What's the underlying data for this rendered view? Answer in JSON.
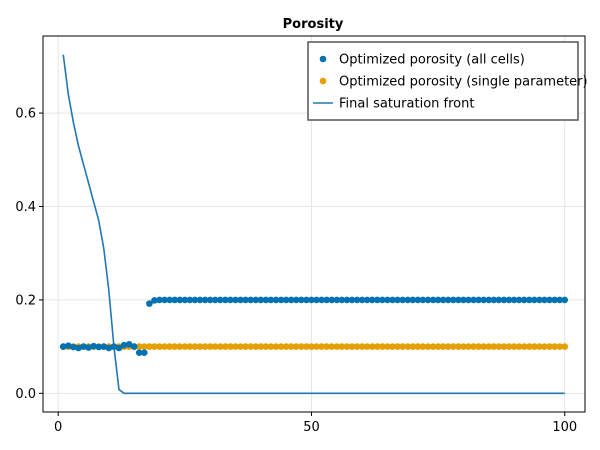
{
  "chart_data": {
    "type": "scatter",
    "title": "Porosity",
    "xlabel": "",
    "ylabel": "",
    "xlim": [
      -3,
      104
    ],
    "ylim": [
      -0.04,
      0.765
    ],
    "xticks": [
      0,
      50,
      100
    ],
    "yticks": [
      0.0,
      0.2,
      0.4,
      0.6
    ],
    "grid": true,
    "legend_position": "top-right",
    "series": [
      {
        "name": "Optimized porosity (all cells)",
        "kind": "scatter",
        "color": "#0072b2",
        "x": [
          1,
          2,
          3,
          4,
          5,
          6,
          7,
          8,
          9,
          10,
          11,
          12,
          13,
          14,
          15,
          16,
          17,
          18,
          19,
          20,
          21,
          22,
          23,
          24,
          25,
          26,
          27,
          28,
          29,
          30,
          31,
          32,
          33,
          34,
          35,
          36,
          37,
          38,
          39,
          40,
          41,
          42,
          43,
          44,
          45,
          46,
          47,
          48,
          49,
          50,
          51,
          52,
          53,
          54,
          55,
          56,
          57,
          58,
          59,
          60,
          61,
          62,
          63,
          64,
          65,
          66,
          67,
          68,
          69,
          70,
          71,
          72,
          73,
          74,
          75,
          76,
          77,
          78,
          79,
          80,
          81,
          82,
          83,
          84,
          85,
          86,
          87,
          88,
          89,
          90,
          91,
          92,
          93,
          94,
          95,
          96,
          97,
          98,
          99,
          100
        ],
        "y": [
          0.1,
          0.102,
          0.099,
          0.097,
          0.1,
          0.098,
          0.101,
          0.099,
          0.1,
          0.097,
          0.1,
          0.097,
          0.103,
          0.105,
          0.1,
          0.087,
          0.087,
          0.192,
          0.199,
          0.2,
          0.2,
          0.2,
          0.2,
          0.2,
          0.2,
          0.2,
          0.2,
          0.2,
          0.2,
          0.2,
          0.2,
          0.2,
          0.2,
          0.2,
          0.2,
          0.2,
          0.2,
          0.2,
          0.2,
          0.2,
          0.2,
          0.2,
          0.2,
          0.2,
          0.2,
          0.2,
          0.2,
          0.2,
          0.2,
          0.2,
          0.2,
          0.2,
          0.2,
          0.2,
          0.2,
          0.2,
          0.2,
          0.2,
          0.2,
          0.2,
          0.2,
          0.2,
          0.2,
          0.2,
          0.2,
          0.2,
          0.2,
          0.2,
          0.2,
          0.2,
          0.2,
          0.2,
          0.2,
          0.2,
          0.2,
          0.2,
          0.2,
          0.2,
          0.2,
          0.2,
          0.2,
          0.2,
          0.2,
          0.2,
          0.2,
          0.2,
          0.2,
          0.2,
          0.2,
          0.2,
          0.2,
          0.2,
          0.2,
          0.2,
          0.2,
          0.2,
          0.2,
          0.2,
          0.2,
          0.2
        ]
      },
      {
        "name": "Optimized porosity (single parameter)",
        "kind": "scatter",
        "color": "#e69f00",
        "x": [
          1,
          2,
          3,
          4,
          5,
          6,
          7,
          8,
          9,
          10,
          11,
          12,
          13,
          14,
          15,
          16,
          17,
          18,
          19,
          20,
          21,
          22,
          23,
          24,
          25,
          26,
          27,
          28,
          29,
          30,
          31,
          32,
          33,
          34,
          35,
          36,
          37,
          38,
          39,
          40,
          41,
          42,
          43,
          44,
          45,
          46,
          47,
          48,
          49,
          50,
          51,
          52,
          53,
          54,
          55,
          56,
          57,
          58,
          59,
          60,
          61,
          62,
          63,
          64,
          65,
          66,
          67,
          68,
          69,
          70,
          71,
          72,
          73,
          74,
          75,
          76,
          77,
          78,
          79,
          80,
          81,
          82,
          83,
          84,
          85,
          86,
          87,
          88,
          89,
          90,
          91,
          92,
          93,
          94,
          95,
          96,
          97,
          98,
          99,
          100
        ],
        "y": [
          0.1,
          0.1,
          0.1,
          0.1,
          0.1,
          0.1,
          0.1,
          0.1,
          0.1,
          0.1,
          0.1,
          0.1,
          0.1,
          0.1,
          0.1,
          0.1,
          0.1,
          0.1,
          0.1,
          0.1,
          0.1,
          0.1,
          0.1,
          0.1,
          0.1,
          0.1,
          0.1,
          0.1,
          0.1,
          0.1,
          0.1,
          0.1,
          0.1,
          0.1,
          0.1,
          0.1,
          0.1,
          0.1,
          0.1,
          0.1,
          0.1,
          0.1,
          0.1,
          0.1,
          0.1,
          0.1,
          0.1,
          0.1,
          0.1,
          0.1,
          0.1,
          0.1,
          0.1,
          0.1,
          0.1,
          0.1,
          0.1,
          0.1,
          0.1,
          0.1,
          0.1,
          0.1,
          0.1,
          0.1,
          0.1,
          0.1,
          0.1,
          0.1,
          0.1,
          0.1,
          0.1,
          0.1,
          0.1,
          0.1,
          0.1,
          0.1,
          0.1,
          0.1,
          0.1,
          0.1,
          0.1,
          0.1,
          0.1,
          0.1,
          0.1,
          0.1,
          0.1,
          0.1,
          0.1,
          0.1,
          0.1,
          0.1,
          0.1,
          0.1,
          0.1,
          0.1,
          0.1,
          0.1,
          0.1,
          0.1
        ]
      },
      {
        "name": "Final saturation front",
        "kind": "line",
        "color": "#1f77b4",
        "x": [
          1,
          2,
          3,
          4,
          5,
          6,
          7,
          8,
          9,
          10,
          11,
          12,
          13,
          14,
          100
        ],
        "y": [
          0.725,
          0.64,
          0.58,
          0.53,
          0.49,
          0.45,
          0.41,
          0.37,
          0.31,
          0.22,
          0.1,
          0.008,
          0.0,
          0.0,
          0.0
        ]
      }
    ]
  }
}
